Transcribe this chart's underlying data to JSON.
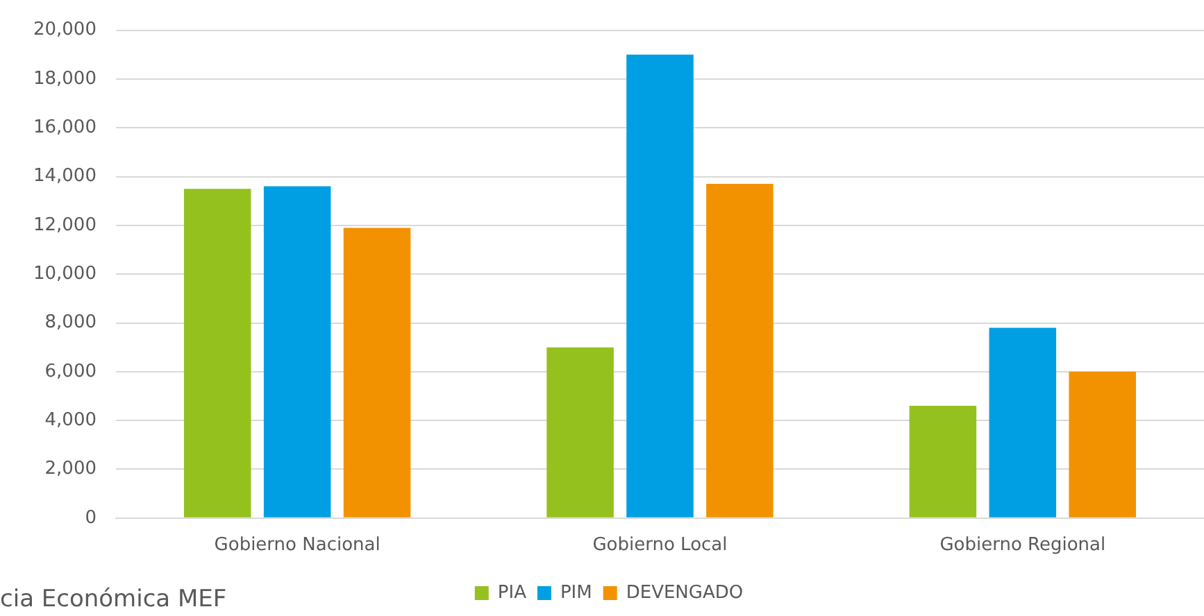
{
  "chart_data": {
    "type": "bar",
    "categories": [
      "Gobierno Nacional",
      "Gobierno Local",
      "Gobierno Regional"
    ],
    "series": [
      {
        "name": "PIA",
        "color": "#95c11f",
        "values": [
          13500,
          7000,
          4600
        ]
      },
      {
        "name": "PIM",
        "color": "#009fe3",
        "values": [
          13600,
          19000,
          7800
        ]
      },
      {
        "name": "DEVENGADO",
        "color": "#f39200",
        "values": [
          11900,
          13700,
          6000
        ]
      }
    ],
    "ylim": [
      0,
      20000
    ],
    "yticks": [
      0,
      {
        "value": 2000,
        "label": "2,000"
      },
      {
        "value": 4000,
        "label": "4,000"
      },
      {
        "value": 6000,
        "label": "6,000"
      },
      {
        "value": 8000,
        "label": "8,000"
      },
      {
        "value": 10000,
        "label": "10,000"
      },
      {
        "value": 12000,
        "label": "12,000"
      },
      {
        "value": 14000,
        "label": "14,000"
      },
      {
        "value": 16000,
        "label": "16,000"
      },
      {
        "value": 18000,
        "label": "18,000"
      },
      {
        "value": 20000,
        "label": "20,000"
      }
    ],
    "grid": "y",
    "legend": "bottom",
    "annotations": [
      "cia Económica MEF"
    ]
  }
}
